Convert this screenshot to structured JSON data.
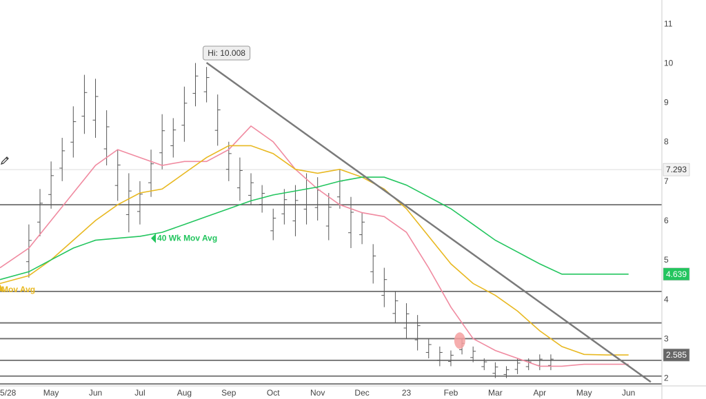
{
  "chart_data": {
    "type": "line",
    "title": "",
    "xlabel": "",
    "ylabel": "",
    "x_tick_labels": [
      "5/28",
      "May",
      "Jun",
      "Jul",
      "Aug",
      "Sep",
      "Oct",
      "Nov",
      "Dec",
      "23",
      "Feb",
      "Mar",
      "Apr",
      "May",
      "Jun"
    ],
    "x_tick_positions": [
      -1,
      1,
      3,
      5,
      7,
      9,
      11,
      13,
      15,
      17,
      19,
      21,
      23,
      25,
      27
    ],
    "y_ticks": [
      2,
      3,
      4,
      5,
      6,
      7,
      8,
      9,
      10,
      11
    ],
    "ylim": [
      1.8,
      11.6
    ],
    "xlim": [
      -1.3,
      28.5
    ],
    "grid": false,
    "price_bars": [
      [
        0,
        4.55,
        5.9
      ],
      [
        0.5,
        5.6,
        6.8
      ],
      [
        1,
        6.3,
        7.5
      ],
      [
        1.5,
        7.0,
        8.1
      ],
      [
        2,
        7.6,
        8.9
      ],
      [
        2.5,
        8.2,
        9.7
      ],
      [
        3,
        8.1,
        9.6
      ],
      [
        3.5,
        7.4,
        8.8
      ],
      [
        4,
        6.5,
        7.8
      ],
      [
        4.5,
        5.7,
        7.2
      ],
      [
        5,
        5.9,
        7.0
      ],
      [
        5.5,
        6.6,
        7.8
      ],
      [
        6,
        7.3,
        8.7
      ],
      [
        6.5,
        7.6,
        8.6
      ],
      [
        7,
        8.0,
        9.4
      ],
      [
        7.5,
        8.9,
        10.0
      ],
      [
        8,
        9.0,
        9.9
      ],
      [
        8.5,
        7.9,
        9.2
      ],
      [
        9,
        7.0,
        8.0
      ],
      [
        9.5,
        6.5,
        7.6
      ],
      [
        10,
        6.4,
        7.2
      ],
      [
        10.5,
        6.2,
        6.9
      ],
      [
        11,
        5.5,
        6.3
      ],
      [
        11.5,
        5.9,
        6.8
      ],
      [
        12,
        5.6,
        6.9
      ],
      [
        12.5,
        5.9,
        7.2
      ],
      [
        13,
        6.0,
        7.1
      ],
      [
        13.5,
        5.5,
        6.7
      ],
      [
        14,
        6.3,
        7.3
      ],
      [
        14.5,
        5.3,
        6.6
      ],
      [
        15,
        5.4,
        6.2
      ],
      [
        15.5,
        4.4,
        5.4
      ],
      [
        16,
        3.8,
        4.8
      ],
      [
        16.5,
        3.4,
        4.2
      ],
      [
        17,
        3.0,
        3.9
      ],
      [
        17.5,
        2.7,
        3.6
      ],
      [
        18,
        2.5,
        3.0
      ],
      [
        18.5,
        2.3,
        2.8
      ],
      [
        19,
        2.3,
        2.7
      ],
      [
        19.5,
        2.6,
        3.0
      ],
      [
        20,
        2.4,
        2.8
      ],
      [
        20.5,
        2.2,
        2.5
      ],
      [
        21,
        2.0,
        2.4
      ],
      [
        21.5,
        2.0,
        2.3
      ],
      [
        22,
        2.1,
        2.5
      ],
      [
        22.5,
        2.2,
        2.5
      ],
      [
        23,
        2.2,
        2.6
      ],
      [
        23.5,
        2.2,
        2.6
      ]
    ],
    "series": [
      {
        "name": "",
        "color": "#f08aa0",
        "x": [
          -1.3,
          0,
          1,
          2,
          3,
          4,
          5,
          6,
          7,
          8,
          9,
          10,
          11,
          12,
          13,
          14,
          15,
          16,
          17,
          18,
          19,
          20,
          21,
          22,
          23,
          24,
          25,
          26,
          27
        ],
        "y": [
          4.8,
          5.3,
          6.0,
          6.7,
          7.4,
          7.8,
          7.6,
          7.4,
          7.5,
          7.5,
          7.8,
          8.4,
          8.0,
          7.3,
          6.8,
          6.4,
          6.2,
          6.1,
          5.7,
          4.8,
          3.8,
          3.0,
          2.7,
          2.5,
          2.3,
          2.3,
          2.35,
          2.35,
          2.35
        ]
      },
      {
        "name": "",
        "color": "#e8b820",
        "x": [
          -1.3,
          0,
          1,
          2,
          3,
          4,
          5,
          6,
          7,
          8,
          9,
          10,
          11,
          12,
          13,
          14,
          15,
          16,
          17,
          18,
          19,
          20,
          21,
          22,
          23,
          24,
          25,
          26,
          27
        ],
        "y": [
          4.4,
          4.6,
          5.0,
          5.5,
          6.0,
          6.4,
          6.7,
          6.8,
          7.2,
          7.6,
          7.9,
          7.9,
          7.7,
          7.3,
          7.2,
          7.3,
          7.1,
          6.8,
          6.3,
          5.6,
          4.9,
          4.4,
          4.1,
          3.7,
          3.2,
          2.8,
          2.6,
          2.585,
          2.585
        ]
      },
      {
        "name": "40 Wk Mov Avg",
        "color": "#22c55e",
        "x": [
          -1.3,
          0,
          1,
          2,
          3,
          4,
          5,
          6,
          7,
          8,
          9,
          10,
          11,
          12,
          13,
          14,
          15,
          16,
          17,
          18,
          19,
          20,
          21,
          22,
          23,
          24,
          25,
          26,
          27
        ],
        "y": [
          4.5,
          4.7,
          5.0,
          5.3,
          5.5,
          5.55,
          5.6,
          5.7,
          5.9,
          6.1,
          6.3,
          6.5,
          6.65,
          6.75,
          6.85,
          7.0,
          7.1,
          7.1,
          6.9,
          6.6,
          6.3,
          5.9,
          5.5,
          5.2,
          4.9,
          4.639,
          4.639,
          4.639,
          4.639
        ]
      }
    ],
    "horizontal_lines": [
      6.4,
      4.2,
      3.4,
      3.0,
      2.45,
      2.05,
      1.85
    ],
    "reference_line_y": 7.293,
    "trendline": {
      "from": [
        8,
        10.008
      ],
      "to": [
        28,
        1.9
      ]
    },
    "price_labels": [
      {
        "value": "7.293",
        "y": 7.293,
        "background": "#f2f2f2",
        "text_color": "#333333"
      },
      {
        "value": "4.639",
        "y": 4.639,
        "background": "#22c55e",
        "text_color": "#ffffff"
      },
      {
        "value": "2.585",
        "y": 2.585,
        "background": "#666666",
        "text_color": "#ffffff"
      }
    ],
    "annotations": {
      "hi_label": "Hi: 10.008",
      "hi_point": [
        8,
        10.008
      ],
      "ma40_label": "40 Wk Mov Avg",
      "ma40_label_pos": [
        5.5,
        5.55
      ],
      "ma_partial_label": "Mov Avg",
      "ma_partial_label_pos": [
        -1.3,
        4.25
      ]
    },
    "highlight_marker": {
      "x": 19.4,
      "y": 2.95,
      "color": "#f4a0a0"
    }
  }
}
